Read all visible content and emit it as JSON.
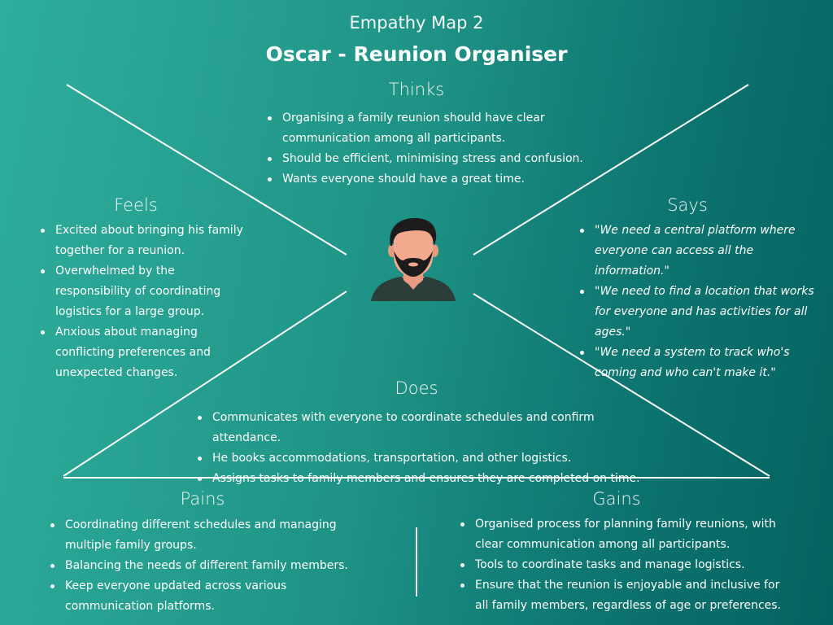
{
  "header": {
    "title": "Empathy Map 2",
    "subtitle": "Oscar - Reunion Organiser"
  },
  "thinks": {
    "title": "Thinks",
    "items": [
      "Organising a family reunion should have clear communication among all participants.",
      "Should be efficient, minimising stress and confusion.",
      "Wants everyone should have a great time."
    ]
  },
  "feels": {
    "title": "Feels",
    "items": [
      "Excited about bringing his family together for a reunion.",
      "Overwhelmed by the responsibility of coordinating logistics for a large group.",
      "Anxious about managing conflicting preferences and unexpected changes."
    ]
  },
  "says": {
    "title": "Says",
    "items": [
      "\"We need a central platform where everyone can access all the information.\"",
      "\"We need to find a location that works for everyone and has activities for all ages.\"",
      "\"We need a system to track who's coming and who can't make it.\""
    ]
  },
  "does": {
    "title": "Does",
    "items": [
      "Communicates with everyone to coordinate schedules and confirm attendance.",
      "He books accommodations, transportation, and other logistics.",
      "Assigns tasks to family members and ensures they are completed on time."
    ]
  },
  "pains": {
    "title": "Pains",
    "items": [
      "Coordinating different schedules and managing multiple family groups.",
      "Balancing the needs of different family members.",
      "Keep everyone updated across various communication platforms."
    ]
  },
  "gains": {
    "title": "Gains",
    "items": [
      "Organised process for planning family reunions, with clear communication among all participants.",
      "Tools to coordinate tasks and manage logistics.",
      "Ensure that the reunion is enjoyable and inclusive for all family members, regardless of age or preferences."
    ]
  },
  "colors": {
    "background_start": "#2fae9d",
    "background_end": "#03625f",
    "lines": "#ffffff",
    "avatar_skin": "#f2a98e",
    "avatar_hair": "#1c1c1c",
    "avatar_shirt": "#2c3e3a"
  },
  "icons": [
    "person-avatar-icon"
  ]
}
